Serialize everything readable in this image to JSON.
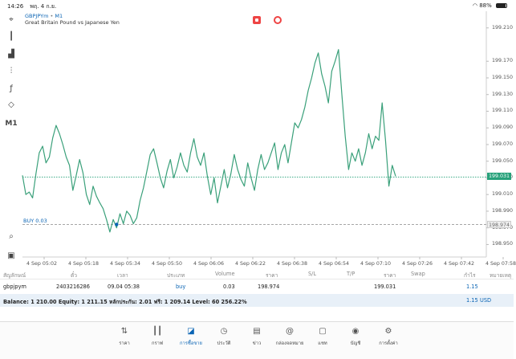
{
  "status_bar": {
    "time": "14:26",
    "date": "พฤ. 4 ก.ย.",
    "battery": "88%",
    "battery_level": 0.88
  },
  "toolbar": {
    "timeframe_label": "M1",
    "tools": [
      "crosshair-icon",
      "candlestick-type-icon",
      "bar-chart-icon",
      "indicators-icon",
      "function-icon",
      "objects-icon"
    ]
  },
  "chart": {
    "symbol": "GBPJPYm",
    "timeframe": "M1",
    "description": "Great Britain Pound vs Japanese Yen",
    "buy_label": "BUY 0.03",
    "last_price": "199.031",
    "open_price": "198.974",
    "colors": {
      "line": "#3aa07a",
      "grid": "#e6e6e6",
      "bid": "#26a17a",
      "order": "#999999"
    }
  },
  "chart_data": {
    "type": "line",
    "ylim": [
      198.935,
      199.23
    ],
    "yticks": [
      "199.210",
      "199.170",
      "199.150",
      "199.130",
      "199.110",
      "199.090",
      "199.070",
      "199.050",
      "199.030",
      "199.010",
      "198.990",
      "198.970",
      "198.950"
    ],
    "xticks": [
      "4 Sep 05:02",
      "4 Sep 05:18",
      "4 Sep 05:34",
      "4 Sep 05:50",
      "4 Sep 06:06",
      "4 Sep 06:22",
      "4 Sep 06:38",
      "4 Sep 06:54",
      "4 Sep 07:10",
      "4 Sep 07:26",
      "4 Sep 07:42",
      "4 Sep 07:58"
    ],
    "values": [
      199.033,
      199.01,
      199.013,
      199.006,
      199.035,
      199.06,
      199.068,
      199.048,
      199.055,
      199.078,
      199.093,
      199.083,
      199.07,
      199.055,
      199.045,
      199.015,
      199.033,
      199.052,
      199.036,
      199.01,
      198.998,
      199.02,
      199.008,
      199.0,
      198.993,
      198.98,
      198.965,
      198.98,
      198.97,
      198.987,
      198.975,
      198.99,
      198.985,
      198.975,
      198.982,
      199.003,
      199.018,
      199.038,
      199.058,
      199.065,
      199.048,
      199.03,
      199.018,
      199.038,
      199.052,
      199.03,
      199.043,
      199.06,
      199.045,
      199.037,
      199.06,
      199.077,
      199.055,
      199.045,
      199.06,
      199.032,
      199.01,
      199.03,
      199.0,
      199.02,
      199.04,
      199.018,
      199.035,
      199.058,
      199.04,
      199.028,
      199.02,
      199.048,
      199.03,
      199.015,
      199.04,
      199.058,
      199.04,
      199.048,
      199.06,
      199.072,
      199.04,
      199.06,
      199.07,
      199.048,
      199.072,
      199.096,
      199.09,
      199.1,
      199.115,
      199.135,
      199.15,
      199.168,
      199.18,
      199.155,
      199.14,
      199.12,
      199.158,
      199.17,
      199.184,
      199.13,
      199.08,
      199.04,
      199.06,
      199.05,
      199.065,
      199.045,
      199.06,
      199.083,
      199.065,
      199.08,
      199.075,
      199.12,
      199.075,
      199.02,
      199.045,
      199.032
    ]
  },
  "positions": {
    "columns": [
      "สัญลักษณ์",
      "ตั๋ว",
      "เวลา",
      "ประเภท",
      "Volume",
      "ราคา",
      "S/L",
      "T/P",
      "ราคา",
      "Swap",
      "กำไร",
      "หมายเหตุ"
    ],
    "rows": [
      {
        "symbol": "gbpjpym",
        "ticket": "2403216286",
        "time": "09.04 05:38",
        "type": "buy",
        "volume": "0.03",
        "open_price": "198.974",
        "sl": "",
        "tp": "",
        "price": "199.031",
        "swap": "",
        "profit": "1.15",
        "comment": ""
      }
    ],
    "balance_text": "Balance: 1 210.00 Equity: 1 211.15 หลักประกัน: 2.01 ฟรี: 1 209.14 Level: 60 256.22%",
    "total_profit": "1.15",
    "currency": "USD"
  },
  "nav": {
    "items": [
      {
        "label": "ราคา",
        "icon": "quotes-icon"
      },
      {
        "label": "กราฟ",
        "icon": "chart-icon"
      },
      {
        "label": "การซื้อขาย",
        "icon": "trade-icon",
        "active": true
      },
      {
        "label": "ประวัติ",
        "icon": "history-icon"
      },
      {
        "label": "ข่าว",
        "icon": "news-icon"
      },
      {
        "label": "กล่องจดหมาย",
        "icon": "mailbox-icon"
      },
      {
        "label": "แชท",
        "icon": "chat-icon"
      },
      {
        "label": "บัญชี",
        "icon": "account-icon"
      },
      {
        "label": "การตั้งค่า",
        "icon": "settings-icon"
      }
    ]
  }
}
